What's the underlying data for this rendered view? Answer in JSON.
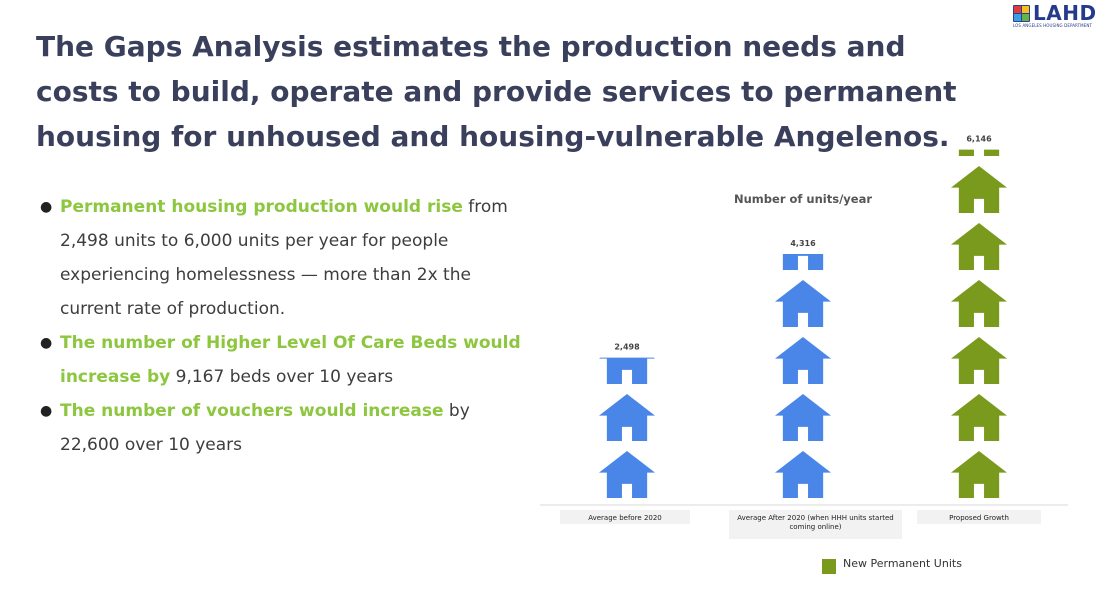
{
  "logo": {
    "text": "LAHD",
    "subtitle": "LOS ANGELES HOUSING DEPARTMENT",
    "colors": [
      "#e23b3b",
      "#f4c01e",
      "#3aa0e0",
      "#64b549"
    ]
  },
  "headline": "The Gaps Analysis estimates the production needs and costs to build, operate and provide services to permanent housing for unhoused and housing-vulnerable Angelenos.",
  "bullets": [
    {
      "highlight": "Permanent housing production would rise",
      "text": " from 2,498 units to 6,000 units per year for people experiencing homelessness  — more than 2x the current rate of production."
    },
    {
      "highlight": "The number of Higher Level Of Care Beds would increase by",
      "text": " 9,167 beds over 10 years"
    },
    {
      "highlight": "The number of vouchers would increase",
      "text": " by 22,600 over 10 years"
    }
  ],
  "colors": {
    "headline": "#3a3f5c",
    "highlight": "#8dc63f",
    "blue_house": "#4a86e8",
    "green_house": "#7a9a1d"
  },
  "chart_data": {
    "type": "bar",
    "title": "Number of units/year",
    "categories": [
      "Average before 2020",
      "Average After 2020 (when HHH units started coming online)",
      "Proposed Growth"
    ],
    "values": [
      2498,
      4316,
      6146
    ],
    "data_labels": [
      "2,498",
      "4,316",
      "6,146"
    ],
    "bar_colors": [
      "#4a86e8",
      "#4a86e8",
      "#7a9a1d"
    ],
    "mark": "house-icon-pictograph",
    "series": [
      {
        "name": "New Permanent Units",
        "values": [
          2498,
          4316,
          6146
        ]
      }
    ],
    "legend": {
      "position": "bottom",
      "label": "New Permanent Units",
      "color": "#7a9a1d"
    },
    "grid": false
  }
}
